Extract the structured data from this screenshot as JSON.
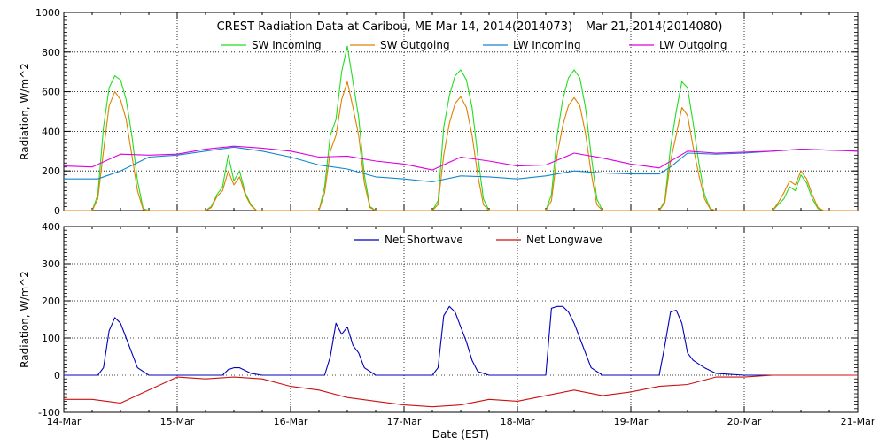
{
  "title": "CREST Radiation Data at Caribou, ME   Mar 14, 2014(2014073) – Mar 21, 2014(2014080)",
  "xlabel": "Date (EST)",
  "colors": {
    "sw_incoming": "#22dd22",
    "sw_outgoing": "#e08000",
    "lw_incoming": "#1188cc",
    "lw_outgoing": "#dd00dd",
    "net_shortwave": "#0000bb",
    "net_longwave": "#cc1111",
    "grid": "#000000"
  },
  "chart_data": [
    {
      "type": "line",
      "name": "top-panel",
      "title": "CREST Radiation Data at Caribou, ME   Mar 14, 2014(2014073) – Mar 21, 2014(2014080)",
      "xlabel": "",
      "ylabel": "Radiation, W/m^2",
      "xlim": [
        0,
        7
      ],
      "ylim": [
        0,
        1000
      ],
      "x_tick_labels": [
        "14-Mar",
        "15-Mar",
        "16-Mar",
        "17-Mar",
        "18-Mar",
        "19-Mar",
        "20-Mar",
        "21-Mar"
      ],
      "y_ticks": [
        0,
        200,
        400,
        600,
        800,
        1000
      ],
      "y_tick_labels": [
        "0",
        "200",
        "400",
        "600",
        "800",
        "1000"
      ],
      "grid": true,
      "legend_position": "top",
      "series": [
        {
          "name": "SW Incoming",
          "color_key": "sw_incoming",
          "x": [
            0.0,
            0.25,
            0.3,
            0.35,
            0.4,
            0.45,
            0.5,
            0.55,
            0.6,
            0.65,
            0.7,
            0.75,
            1.0,
            1.25,
            1.3,
            1.35,
            1.4,
            1.45,
            1.5,
            1.55,
            1.6,
            1.65,
            1.7,
            1.75,
            2.0,
            2.25,
            2.3,
            2.35,
            2.4,
            2.45,
            2.5,
            2.55,
            2.6,
            2.65,
            2.7,
            2.75,
            3.0,
            3.25,
            3.3,
            3.35,
            3.4,
            3.45,
            3.5,
            3.55,
            3.6,
            3.65,
            3.7,
            3.75,
            4.0,
            4.25,
            4.3,
            4.35,
            4.4,
            4.45,
            4.5,
            4.55,
            4.6,
            4.65,
            4.7,
            4.75,
            5.0,
            5.25,
            5.3,
            5.35,
            5.4,
            5.45,
            5.5,
            5.55,
            5.6,
            5.65,
            5.7,
            5.75,
            6.0,
            6.25,
            6.3,
            6.35,
            6.4,
            6.45,
            6.5,
            6.55,
            6.6,
            6.65,
            6.7,
            6.75,
            7.0
          ],
          "values": [
            0,
            0,
            80,
            420,
            620,
            680,
            660,
            560,
            380,
            150,
            10,
            0,
            0,
            0,
            20,
            80,
            120,
            280,
            150,
            200,
            90,
            30,
            0,
            0,
            0,
            0,
            120,
            380,
            460,
            700,
            830,
            650,
            470,
            180,
            20,
            0,
            0,
            0,
            50,
            420,
            580,
            680,
            710,
            660,
            520,
            280,
            60,
            0,
            0,
            0,
            80,
            380,
            560,
            670,
            710,
            670,
            520,
            280,
            60,
            0,
            0,
            0,
            50,
            320,
            500,
            650,
            620,
            440,
            240,
            80,
            10,
            0,
            0,
            0,
            30,
            60,
            120,
            100,
            180,
            140,
            60,
            10,
            0,
            0,
            0
          ]
        },
        {
          "name": "SW Outgoing",
          "color_key": "sw_outgoing",
          "x": [
            0.0,
            0.25,
            0.3,
            0.35,
            0.4,
            0.45,
            0.5,
            0.55,
            0.6,
            0.65,
            0.7,
            0.75,
            1.0,
            1.25,
            1.3,
            1.35,
            1.4,
            1.45,
            1.5,
            1.55,
            1.6,
            1.65,
            1.7,
            1.75,
            2.0,
            2.25,
            2.3,
            2.35,
            2.4,
            2.45,
            2.5,
            2.55,
            2.6,
            2.65,
            2.7,
            2.75,
            3.0,
            3.25,
            3.3,
            3.35,
            3.4,
            3.45,
            3.5,
            3.55,
            3.6,
            3.65,
            3.7,
            3.75,
            4.0,
            4.25,
            4.3,
            4.35,
            4.4,
            4.45,
            4.5,
            4.55,
            4.6,
            4.65,
            4.7,
            4.75,
            5.0,
            5.25,
            5.3,
            5.35,
            5.4,
            5.45,
            5.5,
            5.55,
            5.6,
            5.65,
            5.7,
            5.75,
            6.0,
            6.25,
            6.3,
            6.35,
            6.4,
            6.45,
            6.5,
            6.55,
            6.6,
            6.65,
            6.7,
            6.75,
            7.0
          ],
          "values": [
            0,
            0,
            60,
            300,
            530,
            600,
            560,
            460,
            280,
            100,
            5,
            0,
            0,
            0,
            15,
            70,
            100,
            200,
            130,
            170,
            80,
            25,
            0,
            0,
            0,
            0,
            90,
            300,
            380,
            560,
            650,
            520,
            380,
            140,
            15,
            0,
            0,
            0,
            30,
            280,
            440,
            540,
            575,
            520,
            380,
            180,
            30,
            0,
            0,
            0,
            50,
            280,
            430,
            530,
            570,
            530,
            390,
            190,
            30,
            0,
            0,
            0,
            40,
            250,
            380,
            520,
            480,
            320,
            180,
            60,
            8,
            0,
            0,
            0,
            40,
            90,
            150,
            130,
            200,
            160,
            80,
            15,
            0,
            0,
            0
          ]
        },
        {
          "name": "LW Incoming",
          "color_key": "lw_incoming",
          "x": [
            0.0,
            0.3,
            0.5,
            0.75,
            1.0,
            1.5,
            1.75,
            2.0,
            2.25,
            2.5,
            2.75,
            3.0,
            3.25,
            3.5,
            3.75,
            4.0,
            4.25,
            4.5,
            4.75,
            5.0,
            5.25,
            5.35,
            5.5,
            5.75,
            6.0,
            6.25,
            6.5,
            6.75,
            7.0
          ],
          "values": [
            160,
            160,
            200,
            270,
            280,
            320,
            300,
            270,
            230,
            210,
            170,
            160,
            145,
            175,
            170,
            160,
            175,
            200,
            190,
            185,
            185,
            220,
            290,
            285,
            290,
            300,
            310,
            305,
            305
          ]
        },
        {
          "name": "LW Outgoing",
          "color_key": "lw_outgoing",
          "x": [
            0.0,
            0.25,
            0.5,
            0.75,
            1.0,
            1.25,
            1.5,
            1.75,
            2.0,
            2.25,
            2.5,
            2.75,
            3.0,
            3.25,
            3.5,
            3.75,
            4.0,
            4.25,
            4.5,
            4.75,
            5.0,
            5.25,
            5.5,
            5.75,
            6.0,
            6.25,
            6.5,
            6.75,
            7.0
          ],
          "values": [
            225,
            220,
            285,
            280,
            285,
            310,
            325,
            315,
            300,
            270,
            275,
            250,
            235,
            205,
            270,
            250,
            225,
            230,
            290,
            265,
            235,
            215,
            300,
            290,
            295,
            300,
            310,
            305,
            300
          ]
        }
      ]
    },
    {
      "type": "line",
      "name": "bottom-panel",
      "xlabel": "Date (EST)",
      "ylabel": "Radiation, W/m^2",
      "xlim": [
        0,
        7
      ],
      "ylim": [
        -100,
        400
      ],
      "x_tick_labels": [
        "14-Mar",
        "15-Mar",
        "16-Mar",
        "17-Mar",
        "18-Mar",
        "19-Mar",
        "20-Mar",
        "21-Mar"
      ],
      "y_ticks": [
        -100,
        0,
        100,
        200,
        300,
        400
      ],
      "y_tick_labels": [
        "-100",
        "0",
        "100",
        "200",
        "300",
        "400"
      ],
      "grid": true,
      "legend_position": "top",
      "series": [
        {
          "name": "Net Shortwave",
          "color_key": "net_shortwave",
          "x": [
            0.0,
            0.3,
            0.35,
            0.4,
            0.45,
            0.5,
            0.55,
            0.6,
            0.65,
            0.75,
            1.0,
            1.4,
            1.45,
            1.5,
            1.55,
            1.65,
            1.75,
            2.0,
            2.3,
            2.35,
            2.4,
            2.45,
            2.5,
            2.55,
            2.6,
            2.65,
            2.75,
            3.0,
            3.25,
            3.3,
            3.35,
            3.4,
            3.45,
            3.5,
            3.55,
            3.6,
            3.65,
            3.75,
            4.0,
            4.25,
            4.3,
            4.35,
            4.4,
            4.45,
            4.5,
            4.55,
            4.6,
            4.65,
            4.75,
            5.0,
            5.25,
            5.3,
            5.35,
            5.4,
            5.45,
            5.5,
            5.55,
            5.6,
            5.65,
            5.75,
            6.0,
            6.5,
            7.0
          ],
          "values": [
            0,
            0,
            20,
            120,
            155,
            140,
            100,
            60,
            20,
            0,
            0,
            0,
            15,
            20,
            20,
            5,
            0,
            0,
            0,
            50,
            140,
            110,
            130,
            80,
            60,
            20,
            0,
            0,
            0,
            20,
            160,
            185,
            170,
            130,
            90,
            40,
            10,
            0,
            0,
            0,
            180,
            185,
            185,
            170,
            140,
            100,
            60,
            20,
            0,
            0,
            0,
            80,
            170,
            175,
            140,
            60,
            40,
            30,
            20,
            5,
            0,
            0,
            0
          ]
        },
        {
          "name": "Net Longwave",
          "color_key": "net_longwave",
          "x": [
            0.0,
            0.25,
            0.5,
            0.75,
            1.0,
            1.25,
            1.5,
            1.75,
            2.0,
            2.25,
            2.5,
            2.75,
            3.0,
            3.25,
            3.5,
            3.75,
            4.0,
            4.25,
            4.5,
            4.75,
            5.0,
            5.25,
            5.5,
            5.75,
            6.0,
            6.25,
            6.5,
            6.75,
            7.0
          ],
          "values": [
            -65,
            -65,
            -75,
            -40,
            -5,
            -10,
            -5,
            -10,
            -30,
            -40,
            -60,
            -70,
            -80,
            -85,
            -80,
            -65,
            -70,
            -55,
            -40,
            -55,
            -45,
            -30,
            -25,
            -5,
            -5,
            0,
            0,
            0,
            0
          ]
        }
      ]
    }
  ]
}
